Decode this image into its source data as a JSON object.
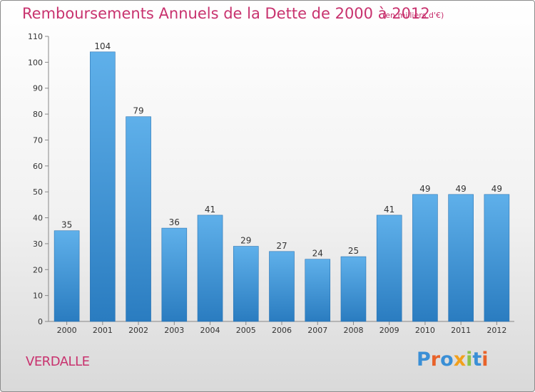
{
  "chart_data": {
    "type": "bar",
    "title": "Remboursements Annuels de la Dette de 2000 à 2012",
    "subtitle": "(en milliers d'€)",
    "categories": [
      "2000",
      "2001",
      "2002",
      "2003",
      "2004",
      "2005",
      "2006",
      "2007",
      "2008",
      "2009",
      "2010",
      "2011",
      "2012"
    ],
    "values": [
      35,
      104,
      79,
      36,
      41,
      29,
      27,
      24,
      25,
      41,
      49,
      49,
      49
    ],
    "ylim": [
      0,
      110
    ],
    "yticks": [
      0,
      10,
      20,
      30,
      40,
      50,
      60,
      70,
      80,
      90,
      100,
      110
    ],
    "grid": false,
    "bar_color": "#3a8fd6"
  },
  "footer": {
    "commune": "VERDALLE",
    "logo_text": "Proxiti",
    "logo_colors": [
      "#3a8fd6",
      "#e8622a",
      "#3a8fd6",
      "#f2a01c",
      "#8bc34a",
      "#3a8fd6",
      "#e8622a"
    ]
  }
}
